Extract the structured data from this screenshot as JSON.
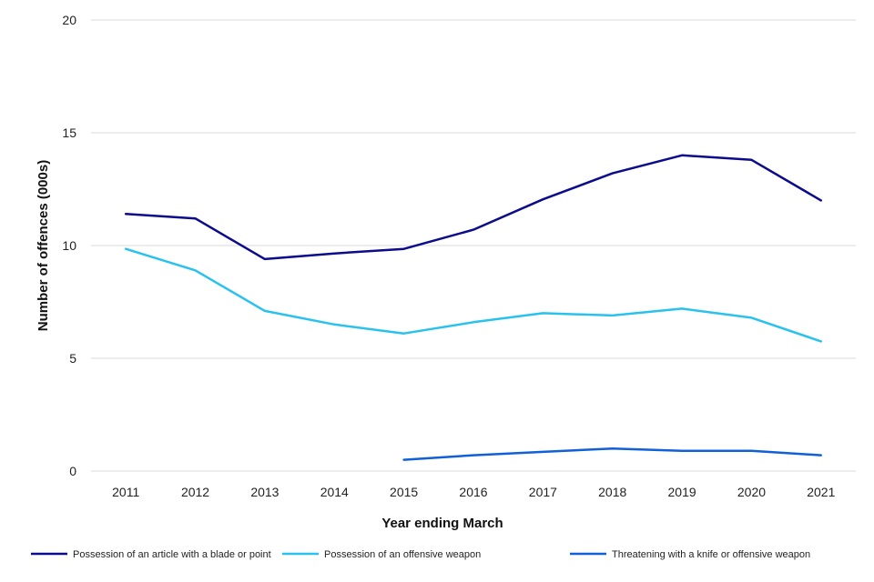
{
  "chart_data": {
    "type": "line",
    "title": "",
    "xlabel": "Year ending March",
    "ylabel": "Number of offences (000s)",
    "ylim": [
      0,
      20
    ],
    "yticks": [
      0,
      5,
      10,
      15,
      20
    ],
    "grid": true,
    "legend_position": "bottom",
    "categories": [
      "2011",
      "2012",
      "2013",
      "2014",
      "2015",
      "2016",
      "2017",
      "2018",
      "2019",
      "2020",
      "2021"
    ],
    "series": [
      {
        "name": "Possession of an article with a blade or point",
        "color": "#0b0b8c",
        "values": [
          11.4,
          11.2,
          9.4,
          9.65,
          9.85,
          10.7,
          12.05,
          13.2,
          14.0,
          13.8,
          12.0
        ]
      },
      {
        "name": "Possession of an offensive weapon",
        "color": "#29c2ee",
        "values": [
          9.85,
          8.9,
          7.1,
          6.5,
          6.1,
          6.6,
          7.0,
          6.9,
          7.2,
          6.8,
          5.75
        ]
      },
      {
        "name": "Threatening with a knife or offensive weapon",
        "color": "#1060d8",
        "values": [
          null,
          null,
          null,
          null,
          0.5,
          0.7,
          0.85,
          1.0,
          0.9,
          0.9,
          0.7
        ]
      }
    ]
  }
}
